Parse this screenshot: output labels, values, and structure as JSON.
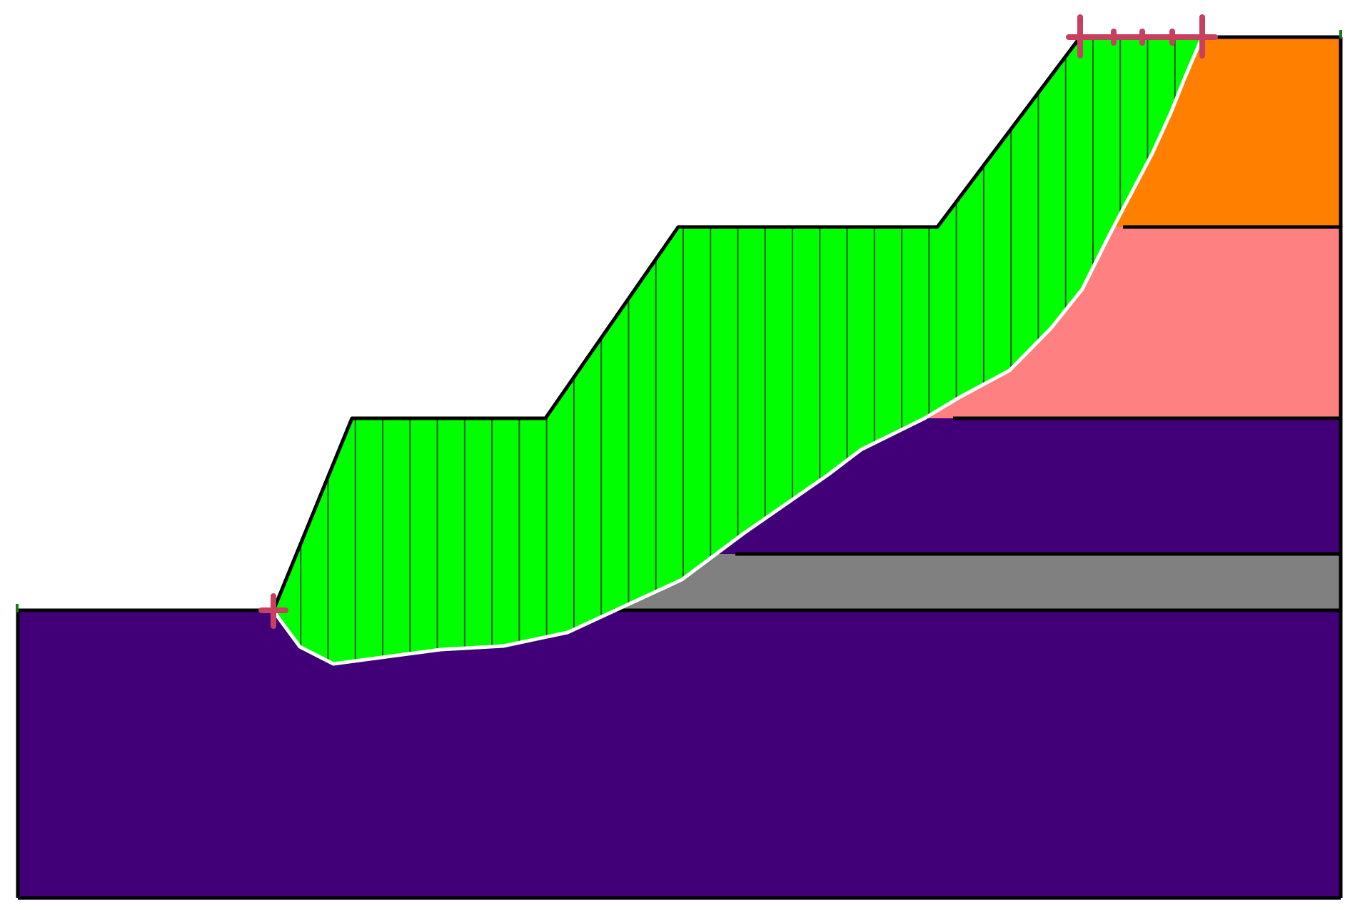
{
  "diagram": {
    "kind": "slope stability cross-section",
    "colors": {
      "background": "#ffffff",
      "foundation_layer": "#420078",
      "weak_layer": "#808080",
      "upper_purple_layer": "#420078",
      "pink_layer": "#ff8080",
      "orange_layer": "#ff8000",
      "sliding_mass": "#00ff00",
      "slice_lines": "#1a5a1a",
      "slip_surface": "#ffffff",
      "boundary_lines": "#000000",
      "entry_exit_markers": "#c84060"
    },
    "layers": [
      {
        "name": "foundation-layer",
        "color_key": "foundation_layer"
      },
      {
        "name": "weak-layer",
        "color_key": "weak_layer"
      },
      {
        "name": "upper-purple-layer",
        "color_key": "upper_purple_layer"
      },
      {
        "name": "pink-layer",
        "color_key": "pink_layer"
      },
      {
        "name": "orange-layer",
        "color_key": "orange_layer"
      }
    ],
    "slice_count": 34,
    "markers": {
      "entry_point": "plus-marker",
      "exit_range": "range-marker"
    }
  }
}
